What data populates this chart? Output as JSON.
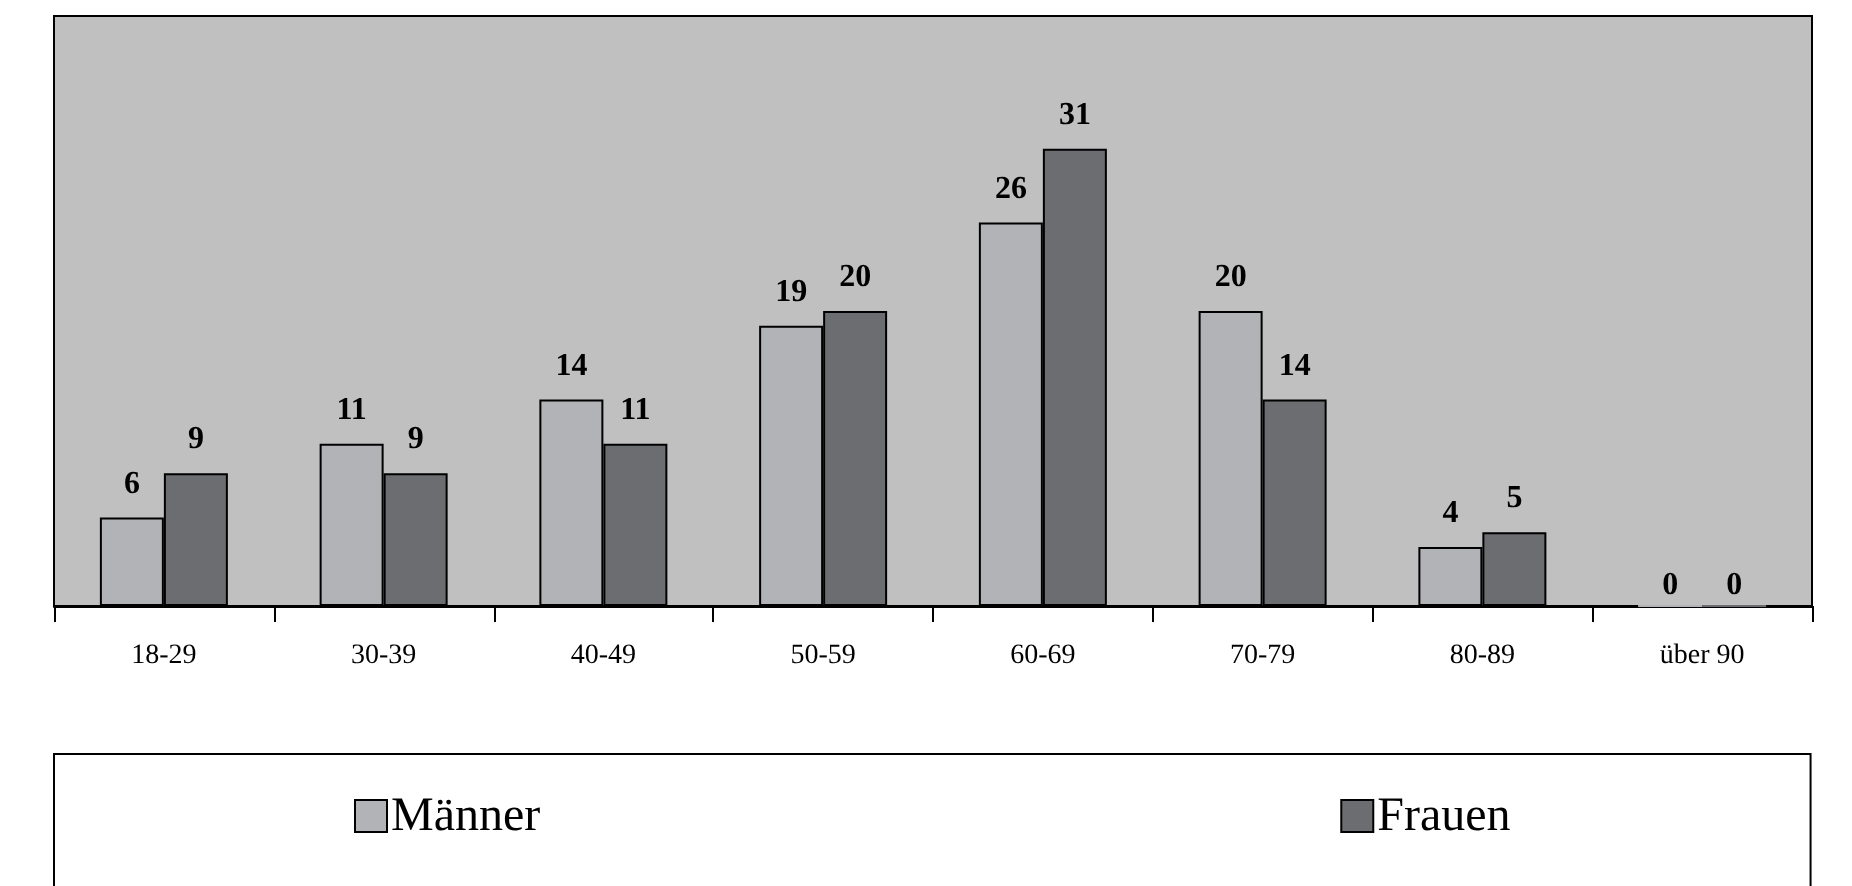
{
  "chart_data": {
    "type": "bar",
    "categories": [
      "18-29",
      "30-39",
      "40-49",
      "50-59",
      "60-69",
      "70-79",
      "80-89",
      "über 90"
    ],
    "series": [
      {
        "name": "Männer",
        "color": "#b1b3b6",
        "values": [
          6,
          11,
          14,
          19,
          26,
          20,
          4,
          0
        ]
      },
      {
        "name": "Frauen",
        "color": "#6b6d70",
        "values": [
          9,
          9,
          11,
          20,
          31,
          14,
          5,
          0
        ]
      }
    ],
    "ylim": [
      0,
      40
    ],
    "tick_labels": "x",
    "data_labels": true,
    "legend": "bottom"
  }
}
